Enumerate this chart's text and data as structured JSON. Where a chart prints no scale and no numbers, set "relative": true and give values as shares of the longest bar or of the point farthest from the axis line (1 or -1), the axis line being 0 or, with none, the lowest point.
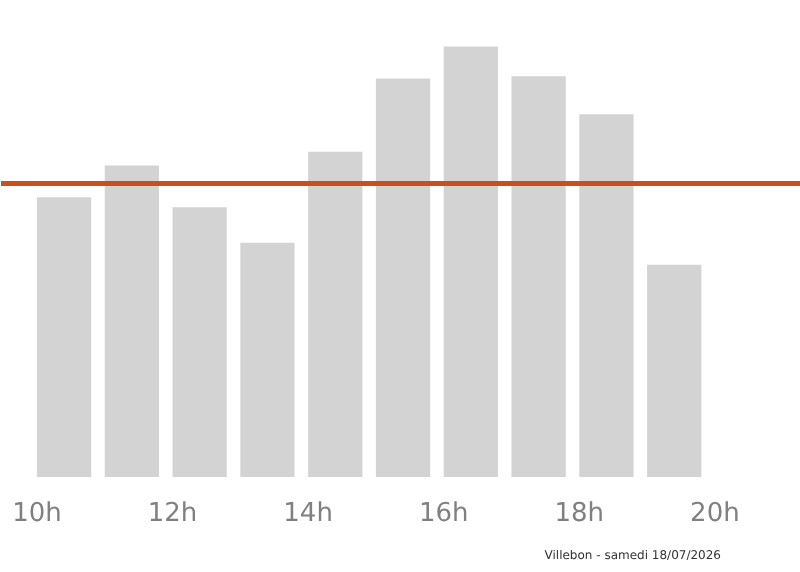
{
  "chart_data": {
    "type": "bar",
    "relative": true,
    "x": [
      10.4,
      11.4,
      12.4,
      13.4,
      14.4,
      15.4,
      16.4,
      17.4,
      18.4,
      19.4
    ],
    "values": [
      0.65,
      0.724,
      0.627,
      0.544,
      0.756,
      0.926,
      1,
      0.931,
      0.843,
      0.493
    ],
    "color": "#d3d3d3",
    "xlim": [
      9.47,
      21.27
    ],
    "xticks": [
      {
        "value": 10,
        "label": "10h"
      },
      {
        "value": 12,
        "label": "12h"
      },
      {
        "value": 14,
        "label": "14h"
      },
      {
        "value": 16,
        "label": "16h"
      },
      {
        "value": 18,
        "label": "18h"
      },
      {
        "value": 20,
        "label": "20h"
      }
    ],
    "ref_lines": [
      {
        "axis": "y",
        "value": 0.682,
        "label": null,
        "color": "#c8501e"
      }
    ],
    "grid": false,
    "annotations": [
      "Villebon - samedi 18/07/2026"
    ]
  }
}
